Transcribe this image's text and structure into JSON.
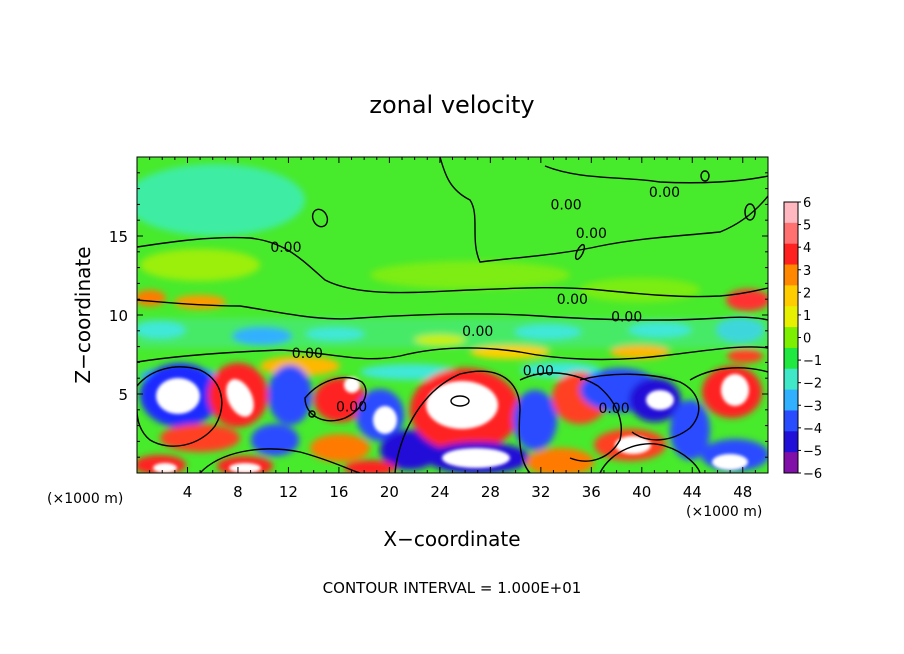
{
  "chart_data": {
    "type": "heatmap",
    "title": "zonal velocity",
    "xlabel": "X−coordinate",
    "ylabel": "Z−coordinate",
    "x_unit": "(×1000 m)",
    "z_unit": "(×1000 m)",
    "xlim": [
      0,
      50
    ],
    "ylim": [
      0,
      20
    ],
    "x_ticks": [
      "4",
      "8",
      "12",
      "16",
      "20",
      "24",
      "28",
      "32",
      "36",
      "40",
      "44",
      "48"
    ],
    "y_ticks": [
      "5",
      "10",
      "15"
    ],
    "colorbar": {
      "range": [
        -6,
        6
      ],
      "labels": [
        "6",
        "5",
        "4",
        "3",
        "2",
        "1",
        "0",
        "−1",
        "−2",
        "−3",
        "−4",
        "−5",
        "−6"
      ],
      "colors": [
        "#ffb8c0",
        "#ff7070",
        "#ff2020",
        "#ff8800",
        "#ffcc00",
        "#e6f000",
        "#7cf000",
        "#20e840",
        "#40e8c8",
        "#30b0ff",
        "#2a4cff",
        "#2010d8",
        "#8010a8"
      ]
    },
    "contour_labels": [
      {
        "text": "0.00",
        "x": 11.8,
        "z": 14.3
      },
      {
        "text": "0.00",
        "x": 34.0,
        "z": 17.0
      },
      {
        "text": "0.00",
        "x": 41.8,
        "z": 17.8
      },
      {
        "text": "0.00",
        "x": 36.0,
        "z": 15.2
      },
      {
        "text": "0.00",
        "x": 34.5,
        "z": 11.0
      },
      {
        "text": "0.00",
        "x": 38.8,
        "z": 9.9
      },
      {
        "text": "0.00",
        "x": 27.0,
        "z": 9.0
      },
      {
        "text": "0.00",
        "x": 13.5,
        "z": 7.6
      },
      {
        "text": "0.00",
        "x": 31.8,
        "z": 6.5
      },
      {
        "text": "0.00",
        "x": 17.0,
        "z": 4.2
      },
      {
        "text": "0.00",
        "x": 37.8,
        "z": 4.1
      }
    ],
    "footer": "CONTOUR INTERVAL = 1.000E+01"
  }
}
